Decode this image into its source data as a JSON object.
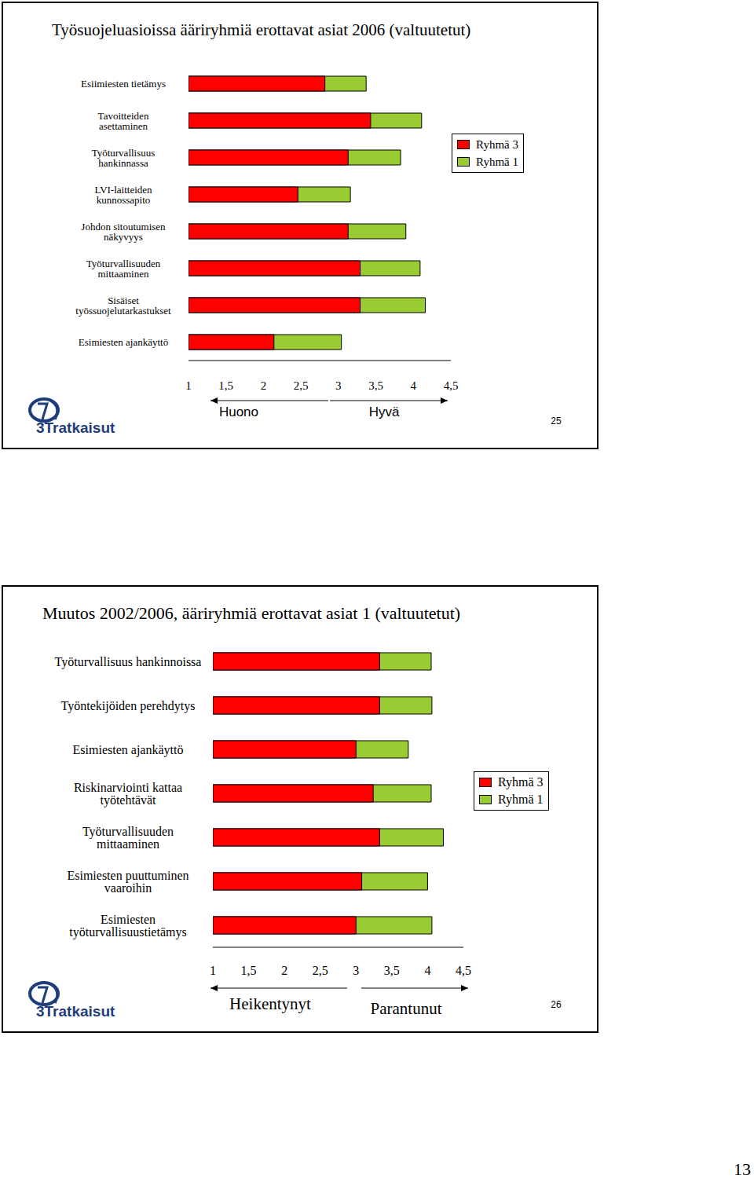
{
  "chart_data": [
    {
      "type": "bar",
      "orientation": "horizontal",
      "title": "Työsuojeluasioissa ääriryhmiä erottavat asiat 2006 (valtuutetut)",
      "categories": [
        "Esiimiesten tietämys",
        "Tavoitteiden asettaminen",
        "Työturvallisuus hankinnassa",
        "LVI-laitteiden kunnossapito",
        "Johdon sitoutumisen näkyvyys",
        "Työturvallisuuden mittaaminen",
        "Sisäiset työssuojelutarkastukset",
        "Esimiesten ajankäyttö"
      ],
      "series": [
        {
          "name": "Ryhmä 3",
          "color": "#ff0000",
          "values": [
            2.82,
            3.43,
            3.13,
            2.46,
            3.13,
            3.29,
            3.29,
            2.14
          ]
        },
        {
          "name": "Ryhmä 1",
          "color": "#99cc33",
          "values": [
            3.37,
            4.11,
            3.83,
            3.16,
            3.9,
            4.09,
            4.16,
            3.04
          ]
        }
      ],
      "xlim": [
        1,
        4.5
      ],
      "xticks": [
        1,
        {
          "value": 1.5,
          "label": "1,5"
        },
        2,
        {
          "value": 2.5,
          "label": "2,5"
        },
        3,
        {
          "value": 3.5,
          "label": "3,5"
        },
        4,
        {
          "value": 4.5,
          "label": "4,5"
        }
      ],
      "legend": "right",
      "annotations": [
        "Huono",
        "Hyvä"
      ],
      "slide_number": "25",
      "logo": "3Tratkaisut"
    },
    {
      "type": "bar",
      "orientation": "horizontal",
      "title": "Muutos 2002/2006, ääriryhmiä erottavat asiat 1 (valtuutetut)",
      "categories": [
        "Työturvallisuus hankinnoissa",
        "Työntekijöiden perehdytys",
        "Esimiesten ajankäyttö",
        "Riskinarviointi kattaa työtehtävät",
        "Työturvallisuuden mittaaminen",
        "Esimiesten puuttuminen vaaroihin",
        "Esimiesten työturvallisuustietämys"
      ],
      "series": [
        {
          "name": "Ryhmä 3",
          "color": "#ff0000",
          "values": [
            3.33,
            3.33,
            3.0,
            3.24,
            3.33,
            3.08,
            3.0
          ]
        },
        {
          "name": "Ryhmä 1",
          "color": "#99cc33",
          "values": [
            4.05,
            4.06,
            3.73,
            4.05,
            4.22,
            4.0,
            4.06
          ]
        }
      ],
      "xlim": [
        1,
        4.5
      ],
      "xticks": [
        1,
        {
          "value": 1.5,
          "label": "1,5"
        },
        2,
        {
          "value": 2.5,
          "label": "2,5"
        },
        3,
        {
          "value": 3.5,
          "label": "3,5"
        },
        4,
        {
          "value": 4.5,
          "label": "4,5"
        }
      ],
      "legend": "right",
      "annotations": [
        "Heikentynyt",
        "Parantunut"
      ],
      "slide_number": "26",
      "logo": "3Tratkaisut"
    }
  ],
  "page": "13"
}
